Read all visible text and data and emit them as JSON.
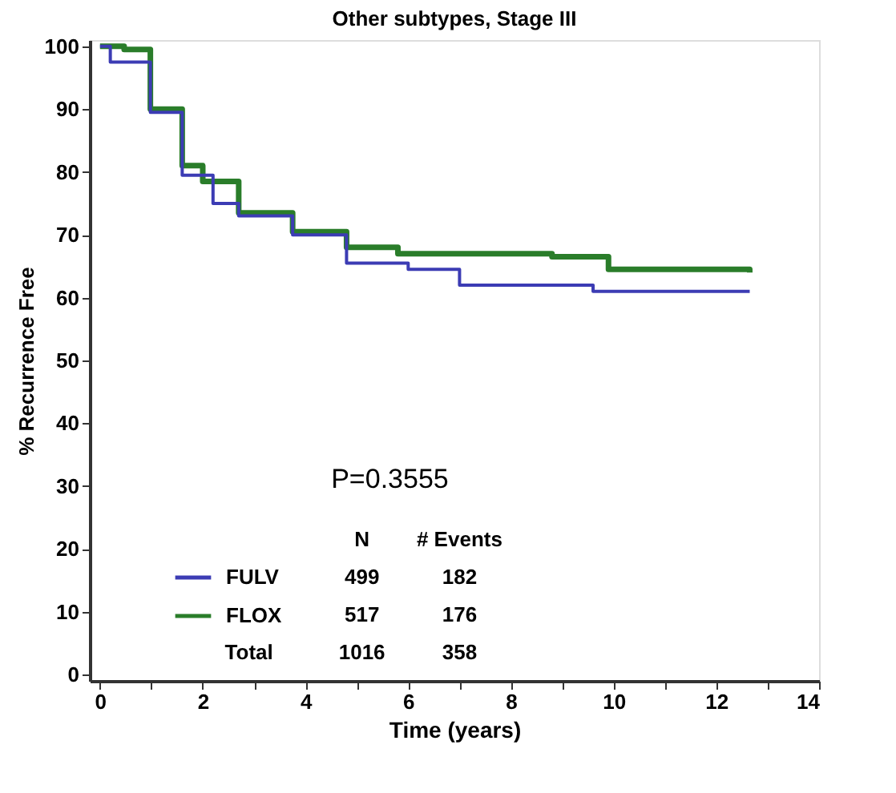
{
  "chart_data": {
    "type": "step",
    "title": "Other subtypes, Stage III",
    "xlabel": "Time (years)",
    "ylabel": "% Recurrence Free",
    "series": [
      {
        "name": "FULV",
        "color": "#3c3cb4",
        "x": [
          0,
          0.2,
          0.98,
          1.6,
          2.2,
          2.7,
          3.75,
          4.8,
          6.0,
          7.0,
          9.6,
          12.65
        ],
        "values": [
          100,
          97.5,
          89.5,
          79.5,
          75,
          73,
          70,
          65.5,
          64.5,
          62,
          61,
          61
        ]
      },
      {
        "name": "FLOX",
        "color": "#2a7d2a",
        "x": [
          0,
          0.47,
          0.98,
          1.6,
          2.0,
          2.7,
          3.75,
          4.8,
          5.8,
          6.85,
          8.8,
          9.9,
          12.65
        ],
        "values": [
          100,
          99.5,
          90,
          81,
          78.5,
          73.5,
          70.5,
          68,
          67,
          67,
          66.5,
          64.5,
          64
        ]
      }
    ],
    "xlim": [
      -0.2,
      14
    ],
    "xticks": [
      0,
      {
        "value": 1,
        "label": null
      },
      2,
      {
        "value": 3,
        "label": null
      },
      4,
      {
        "value": 5,
        "label": null
      },
      6,
      {
        "value": 7,
        "label": null
      },
      8,
      {
        "value": 9,
        "label": null
      },
      10,
      {
        "value": 11,
        "label": null
      },
      12,
      {
        "value": 13,
        "label": null
      },
      14
    ],
    "ylim": [
      -1,
      101
    ],
    "yticks": [
      0,
      10,
      20,
      30,
      40,
      50,
      60,
      70,
      80,
      90,
      100
    ],
    "grid": false,
    "legend": "bottom left",
    "line_style": "solid",
    "marker": "none",
    "annotations": [
      "P=0.3555",
      "N",
      "# Events",
      "499",
      "182",
      "517",
      "176",
      "Total",
      "1016",
      "358"
    ]
  }
}
